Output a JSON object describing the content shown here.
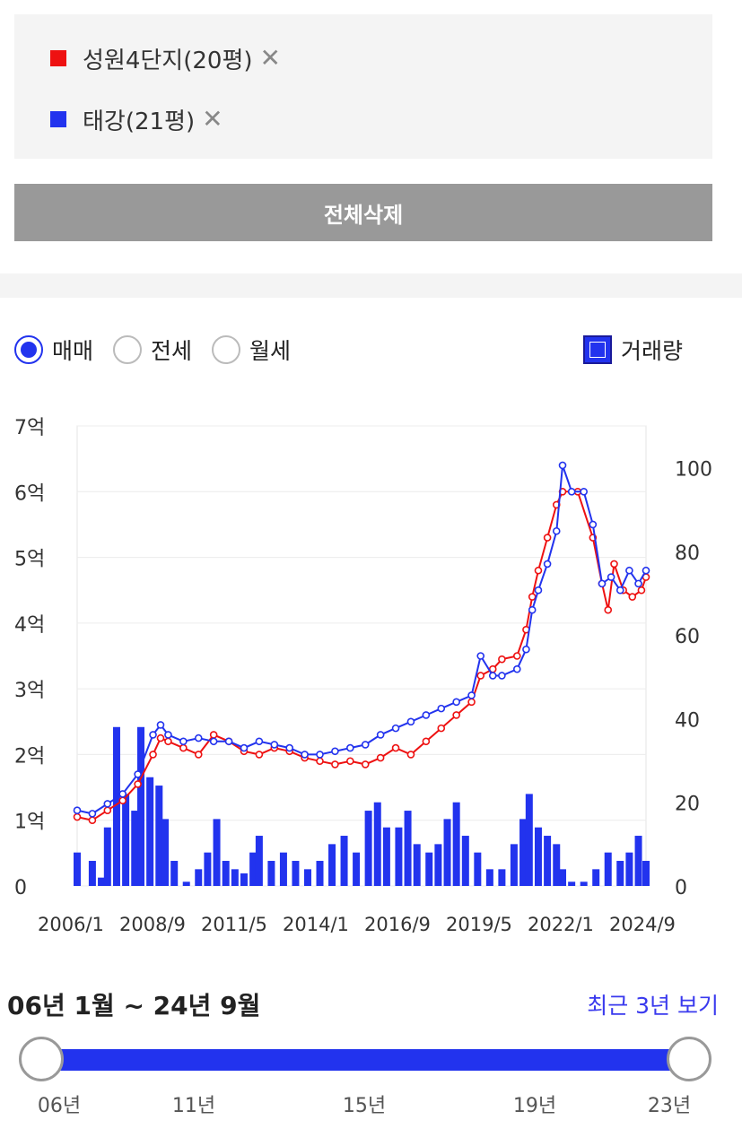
{
  "compare": {
    "items": [
      {
        "label": "성원4단지(20평)",
        "color": "#ee1111",
        "remove": "✕"
      },
      {
        "label": "태강(21평)",
        "color": "#2233ee",
        "remove": "✕"
      }
    ],
    "delete_all": "전체삭제"
  },
  "trade_types": [
    {
      "label": "매매",
      "selected": true
    },
    {
      "label": "전세",
      "selected": false
    },
    {
      "label": "월세",
      "selected": false
    }
  ],
  "volume_toggle": {
    "label": "거래량",
    "checked": true
  },
  "chart_data": {
    "type": "line",
    "x_ticks": [
      "2006/1",
      "2008/9",
      "2011/5",
      "2014/1",
      "2016/9",
      "2019/5",
      "2022/1",
      "2024/9"
    ],
    "y_left_ticks": [
      "0",
      "1억",
      "2억",
      "3억",
      "4억",
      "5억",
      "6억",
      "7억"
    ],
    "y_left_lim": [
      0,
      7
    ],
    "y_right_ticks": [
      "0",
      "20",
      "40",
      "60",
      "80",
      "100"
    ],
    "y_right_lim": [
      0,
      110
    ],
    "grid": true,
    "series": [
      {
        "name": "성원4단지(20평)",
        "color": "#ee1111",
        "points": [
          [
            2006.0,
            1.05
          ],
          [
            2006.5,
            1.0
          ],
          [
            2007.0,
            1.15
          ],
          [
            2007.5,
            1.3
          ],
          [
            2008.0,
            1.55
          ],
          [
            2008.5,
            2.0
          ],
          [
            2008.75,
            2.25
          ],
          [
            2009.0,
            2.2
          ],
          [
            2009.5,
            2.1
          ],
          [
            2010.0,
            2.0
          ],
          [
            2010.5,
            2.3
          ],
          [
            2011.0,
            2.2
          ],
          [
            2011.5,
            2.05
          ],
          [
            2012.0,
            2.0
          ],
          [
            2012.5,
            2.1
          ],
          [
            2013.0,
            2.05
          ],
          [
            2013.5,
            1.95
          ],
          [
            2014.0,
            1.9
          ],
          [
            2014.5,
            1.85
          ],
          [
            2015.0,
            1.9
          ],
          [
            2015.5,
            1.85
          ],
          [
            2016.0,
            1.95
          ],
          [
            2016.5,
            2.1
          ],
          [
            2017.0,
            2.0
          ],
          [
            2017.5,
            2.2
          ],
          [
            2018.0,
            2.4
          ],
          [
            2018.5,
            2.6
          ],
          [
            2019.0,
            2.8
          ],
          [
            2019.3,
            3.2
          ],
          [
            2019.7,
            3.3
          ],
          [
            2020.0,
            3.45
          ],
          [
            2020.5,
            3.5
          ],
          [
            2020.8,
            3.9
          ],
          [
            2021.0,
            4.4
          ],
          [
            2021.2,
            4.8
          ],
          [
            2021.5,
            5.3
          ],
          [
            2021.8,
            5.8
          ],
          [
            2022.0,
            6.0
          ],
          [
            2022.5,
            6.0
          ],
          [
            2023.0,
            5.3
          ],
          [
            2023.3,
            4.6
          ],
          [
            2023.5,
            4.2
          ],
          [
            2023.7,
            4.9
          ],
          [
            2024.0,
            4.5
          ],
          [
            2024.3,
            4.4
          ],
          [
            2024.6,
            4.5
          ],
          [
            2024.75,
            4.7
          ]
        ]
      },
      {
        "name": "태강(21평)",
        "color": "#2233ee",
        "points": [
          [
            2006.0,
            1.15
          ],
          [
            2006.5,
            1.1
          ],
          [
            2007.0,
            1.25
          ],
          [
            2007.5,
            1.4
          ],
          [
            2008.0,
            1.7
          ],
          [
            2008.5,
            2.3
          ],
          [
            2008.75,
            2.45
          ],
          [
            2009.0,
            2.3
          ],
          [
            2009.5,
            2.2
          ],
          [
            2010.0,
            2.25
          ],
          [
            2010.5,
            2.2
          ],
          [
            2011.0,
            2.2
          ],
          [
            2011.5,
            2.1
          ],
          [
            2012.0,
            2.2
          ],
          [
            2012.5,
            2.15
          ],
          [
            2013.0,
            2.1
          ],
          [
            2013.5,
            2.0
          ],
          [
            2014.0,
            2.0
          ],
          [
            2014.5,
            2.05
          ],
          [
            2015.0,
            2.1
          ],
          [
            2015.5,
            2.15
          ],
          [
            2016.0,
            2.3
          ],
          [
            2016.5,
            2.4
          ],
          [
            2017.0,
            2.5
          ],
          [
            2017.5,
            2.6
          ],
          [
            2018.0,
            2.7
          ],
          [
            2018.5,
            2.8
          ],
          [
            2019.0,
            2.9
          ],
          [
            2019.3,
            3.5
          ],
          [
            2019.7,
            3.2
          ],
          [
            2020.0,
            3.2
          ],
          [
            2020.5,
            3.3
          ],
          [
            2020.8,
            3.6
          ],
          [
            2021.0,
            4.2
          ],
          [
            2021.2,
            4.5
          ],
          [
            2021.5,
            4.9
          ],
          [
            2021.8,
            5.4
          ],
          [
            2022.0,
            6.4
          ],
          [
            2022.3,
            6.0
          ],
          [
            2022.7,
            6.0
          ],
          [
            2023.0,
            5.5
          ],
          [
            2023.3,
            4.6
          ],
          [
            2023.6,
            4.7
          ],
          [
            2023.9,
            4.5
          ],
          [
            2024.2,
            4.8
          ],
          [
            2024.5,
            4.6
          ],
          [
            2024.75,
            4.8
          ]
        ]
      },
      {
        "name": "거래량",
        "type": "bar",
        "color": "#2233ee",
        "axis": "right",
        "points": [
          [
            2006.0,
            8
          ],
          [
            2006.5,
            6
          ],
          [
            2006.8,
            2
          ],
          [
            2007.0,
            14
          ],
          [
            2007.3,
            38
          ],
          [
            2007.6,
            22
          ],
          [
            2007.9,
            18
          ],
          [
            2008.1,
            38
          ],
          [
            2008.4,
            26
          ],
          [
            2008.7,
            24
          ],
          [
            2008.9,
            16
          ],
          [
            2009.2,
            6
          ],
          [
            2009.6,
            1
          ],
          [
            2010.0,
            4
          ],
          [
            2010.3,
            8
          ],
          [
            2010.6,
            16
          ],
          [
            2010.9,
            6
          ],
          [
            2011.2,
            4
          ],
          [
            2011.5,
            3
          ],
          [
            2011.8,
            8
          ],
          [
            2012.0,
            12
          ],
          [
            2012.4,
            6
          ],
          [
            2012.8,
            8
          ],
          [
            2013.2,
            6
          ],
          [
            2013.6,
            4
          ],
          [
            2014.0,
            6
          ],
          [
            2014.4,
            10
          ],
          [
            2014.8,
            12
          ],
          [
            2015.2,
            8
          ],
          [
            2015.6,
            18
          ],
          [
            2015.9,
            20
          ],
          [
            2016.2,
            14
          ],
          [
            2016.6,
            14
          ],
          [
            2016.9,
            18
          ],
          [
            2017.2,
            10
          ],
          [
            2017.6,
            8
          ],
          [
            2017.9,
            10
          ],
          [
            2018.2,
            16
          ],
          [
            2018.5,
            20
          ],
          [
            2018.8,
            12
          ],
          [
            2019.2,
            8
          ],
          [
            2019.6,
            4
          ],
          [
            2020.0,
            4
          ],
          [
            2020.4,
            10
          ],
          [
            2020.7,
            16
          ],
          [
            2020.9,
            22
          ],
          [
            2021.2,
            14
          ],
          [
            2021.5,
            12
          ],
          [
            2021.8,
            10
          ],
          [
            2022.0,
            4
          ],
          [
            2022.3,
            1
          ],
          [
            2022.7,
            1
          ],
          [
            2023.1,
            4
          ],
          [
            2023.5,
            8
          ],
          [
            2023.9,
            6
          ],
          [
            2024.2,
            8
          ],
          [
            2024.5,
            12
          ],
          [
            2024.75,
            6
          ]
        ]
      }
    ]
  },
  "range": {
    "label": "06년 1월 ~ 24년 9월",
    "recent_link": "최근 3년 보기",
    "ticks": [
      "06년",
      "11년",
      "15년",
      "19년",
      "23년"
    ]
  }
}
